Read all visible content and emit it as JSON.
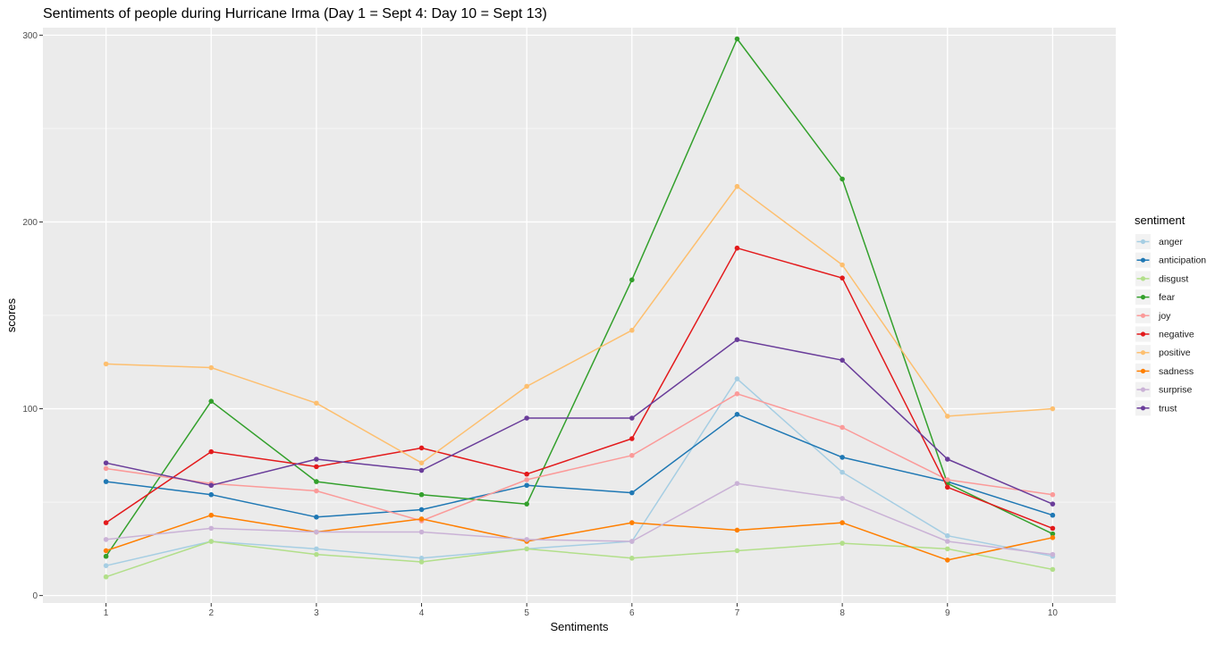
{
  "chart_data": {
    "type": "line",
    "title": "Sentiments of people during Hurricane Irma (Day 1 = Sept 4: Day 10 = Sept 13)",
    "xlabel": "Sentiments",
    "ylabel": "scores",
    "x": [
      1,
      2,
      3,
      4,
      5,
      6,
      7,
      8,
      9,
      10
    ],
    "x_tick_labels": [
      "1",
      "2",
      "3",
      "4",
      "5",
      "6",
      "7",
      "8",
      "9",
      "10"
    ],
    "y_ticks": [
      0,
      100,
      200,
      300
    ],
    "y_tick_labels": [
      "0",
      "100",
      "200",
      "300"
    ],
    "xlim": [
      0.4,
      10.6
    ],
    "ylim": [
      -4,
      304
    ],
    "grid": true,
    "background": "#ebebeb",
    "legend_title": "sentiment",
    "legend_position": "right",
    "series": [
      {
        "name": "anger",
        "color": "#a6cee3",
        "values": [
          16,
          29,
          25,
          20,
          25,
          29,
          116,
          66,
          32,
          21
        ]
      },
      {
        "name": "anticipation",
        "color": "#1f78b4",
        "values": [
          61,
          54,
          42,
          46,
          59,
          55,
          97,
          74,
          61,
          43
        ]
      },
      {
        "name": "disgust",
        "color": "#b2df8a",
        "values": [
          10,
          29,
          22,
          18,
          25,
          20,
          24,
          28,
          25,
          14
        ]
      },
      {
        "name": "fear",
        "color": "#33a02c",
        "values": [
          21,
          104,
          61,
          54,
          49,
          169,
          298,
          223,
          60,
          33
        ]
      },
      {
        "name": "joy",
        "color": "#fb9a99",
        "values": [
          68,
          60,
          56,
          40,
          62,
          75,
          108,
          90,
          62,
          54
        ]
      },
      {
        "name": "negative",
        "color": "#e31a1c",
        "values": [
          39,
          77,
          69,
          79,
          65,
          84,
          186,
          170,
          58,
          36
        ]
      },
      {
        "name": "positive",
        "color": "#fdbf6f",
        "values": [
          124,
          122,
          103,
          71,
          112,
          142,
          219,
          177,
          96,
          100
        ]
      },
      {
        "name": "sadness",
        "color": "#ff7f00",
        "values": [
          24,
          43,
          34,
          41,
          29,
          39,
          35,
          39,
          19,
          31
        ]
      },
      {
        "name": "surprise",
        "color": "#cab2d6",
        "values": [
          30,
          36,
          34,
          34,
          30,
          29,
          60,
          52,
          29,
          22
        ]
      },
      {
        "name": "trust",
        "color": "#6a3d9a",
        "values": [
          71,
          59,
          73,
          67,
          95,
          95,
          137,
          126,
          73,
          49
        ]
      }
    ]
  }
}
